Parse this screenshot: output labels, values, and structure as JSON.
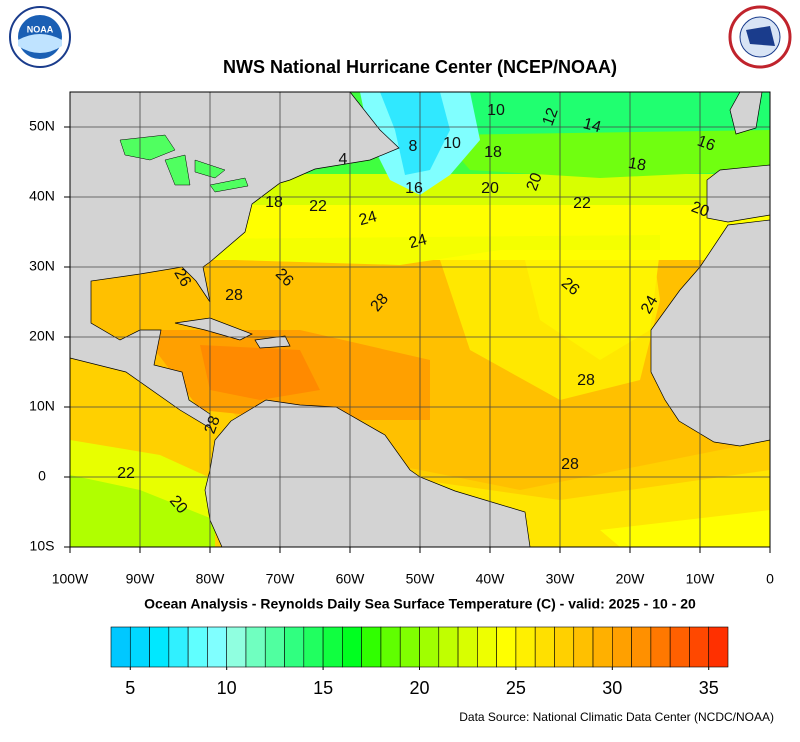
{
  "header": {
    "title": "NWS National Hurricane Center (NCEP/NOAA)",
    "logo_text": "NOAA"
  },
  "map": {
    "lon_range": [
      -100,
      0
    ],
    "lat_range": [
      -10,
      55
    ],
    "lon_ticks": [
      {
        "value": -100,
        "label": "100W"
      },
      {
        "value": -90,
        "label": "90W"
      },
      {
        "value": -80,
        "label": "80W"
      },
      {
        "value": -70,
        "label": "70W"
      },
      {
        "value": -60,
        "label": "60W"
      },
      {
        "value": -50,
        "label": "50W"
      },
      {
        "value": -40,
        "label": "40W"
      },
      {
        "value": -30,
        "label": "30W"
      },
      {
        "value": -20,
        "label": "20W"
      },
      {
        "value": -10,
        "label": "10W"
      },
      0
    ],
    "lat_ticks": [
      {
        "value": -10,
        "label": "10S"
      },
      0,
      {
        "value": 10,
        "label": "10N"
      },
      {
        "value": 20,
        "label": "20N"
      },
      {
        "value": 30,
        "label": "30N"
      },
      {
        "value": 40,
        "label": "40N"
      },
      {
        "value": 50,
        "label": "50N"
      }
    ],
    "grid": true,
    "contour_labels": [
      10,
      12,
      14,
      16,
      8,
      10,
      18,
      4,
      18,
      20,
      16,
      20,
      18,
      22,
      22,
      20,
      24,
      24,
      26,
      28,
      26,
      28,
      26,
      24,
      28,
      28,
      28,
      22,
      20
    ]
  },
  "caption": "Ocean Analysis - Reynolds Daily Sea Surface Temperature (C) - valid: 2025 - 10 - 20",
  "colorbar": {
    "range": [
      4,
      36
    ],
    "ticks": [
      5,
      10,
      15,
      20,
      25,
      30,
      35
    ],
    "colors": [
      "#00c8ff",
      "#00d8ff",
      "#00e8ff",
      "#30f0ff",
      "#60ffff",
      "#80ffff",
      "#90ffe0",
      "#70ffc0",
      "#50ffa0",
      "#30ff80",
      "#20ff60",
      "#10ff40",
      "#00ff20",
      "#30ff00",
      "#60ff00",
      "#80ff00",
      "#a0ff00",
      "#c0ff00",
      "#d8ff00",
      "#eeff00",
      "#ffff00",
      "#fff000",
      "#ffe000",
      "#ffd000",
      "#ffc000",
      "#ffb000",
      "#ffa000",
      "#ff9000",
      "#ff7800",
      "#ff6000",
      "#ff4800",
      "#ff3000"
    ]
  },
  "footer": {
    "source": "Data Source: National Climatic Data Center (NCDC/NOAA)"
  }
}
